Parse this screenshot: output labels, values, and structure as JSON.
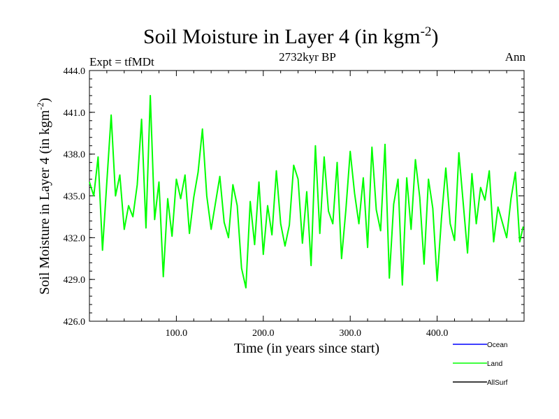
{
  "chart_data": {
    "type": "line",
    "title": "Soil Moisture in Layer 4 (in kgm",
    "title_superscript": "-2",
    "title_suffix": ")",
    "subtitle_left": "Expt = tfMDt",
    "subtitle_center": "2732kyr BP",
    "subtitle_right": "Ann",
    "xlabel": "Time (in years since start)",
    "ylabel": "Soil Moisture in Layer 4 (in kgm",
    "ylabel_superscript": "-2",
    "ylabel_suffix": ")",
    "xlim": [
      0,
      500
    ],
    "ylim": [
      426,
      444
    ],
    "x_ticks": [
      100,
      200,
      300,
      400
    ],
    "x_tick_labels": [
      "100.0",
      "200.0",
      "300.0",
      "400.0"
    ],
    "y_ticks": [
      426,
      429,
      432,
      435,
      438,
      441,
      444
    ],
    "y_tick_labels": [
      "426.0",
      "429.0",
      "432.0",
      "435.0",
      "438.0",
      "441.0",
      "444.0"
    ],
    "legend": {
      "placement": "bottom-right",
      "entries": [
        {
          "label": "Ocean",
          "color": "#0000ff"
        },
        {
          "label": "Land",
          "color": "#00ff00"
        },
        {
          "label": "AllSurf",
          "color": "#000000"
        }
      ]
    },
    "series": [
      {
        "name": "Land",
        "color": "#00ff00",
        "x": [
          0,
          5,
          10,
          15,
          20,
          25,
          30,
          35,
          40,
          45,
          50,
          55,
          60,
          65,
          70,
          75,
          80,
          85,
          90,
          95,
          100,
          105,
          110,
          115,
          120,
          125,
          130,
          135,
          140,
          145,
          150,
          155,
          160,
          165,
          170,
          175,
          180,
          185,
          190,
          195,
          200,
          205,
          210,
          215,
          220,
          225,
          230,
          235,
          240,
          245,
          250,
          255,
          260,
          265,
          270,
          275,
          280,
          285,
          290,
          295,
          300,
          305,
          310,
          315,
          320,
          325,
          330,
          335,
          340,
          345,
          350,
          355,
          360,
          365,
          370,
          375,
          380,
          385,
          390,
          395,
          400,
          405,
          410,
          415,
          420,
          425,
          430,
          435,
          440,
          445,
          450,
          455,
          460,
          465,
          470,
          475,
          480,
          485,
          490,
          495,
          499
        ],
        "values": [
          436.0,
          435.0,
          437.8,
          431.1,
          436.0,
          440.8,
          435.0,
          436.5,
          432.6,
          434.3,
          433.5,
          435.8,
          440.5,
          432.7,
          442.2,
          433.3,
          436.0,
          429.2,
          434.8,
          432.1,
          436.2,
          434.8,
          436.5,
          432.3,
          434.9,
          436.7,
          439.8,
          435.0,
          432.6,
          434.5,
          436.4,
          433.1,
          432.0,
          435.8,
          434.3,
          429.8,
          428.4,
          434.6,
          431.5,
          436.0,
          430.8,
          434.3,
          432.2,
          436.8,
          433.0,
          431.4,
          432.9,
          437.2,
          436.2,
          431.6,
          435.3,
          430.0,
          438.6,
          432.3,
          437.8,
          433.9,
          433.0,
          437.4,
          430.5,
          434.0,
          438.2,
          435.2,
          433.0,
          436.3,
          431.3,
          438.5,
          434.0,
          432.5,
          438.7,
          429.1,
          434.4,
          436.2,
          428.6,
          436.3,
          432.6,
          437.6,
          434.9,
          430.1,
          436.2,
          434.1,
          428.9,
          433.4,
          437.0,
          433.0,
          431.8,
          438.1,
          434.5,
          430.9,
          436.6,
          433.0,
          435.6,
          434.7,
          436.8,
          431.7,
          434.2,
          433.1,
          432.0,
          434.8,
          436.7,
          431.7,
          432.8
        ]
      }
    ]
  }
}
